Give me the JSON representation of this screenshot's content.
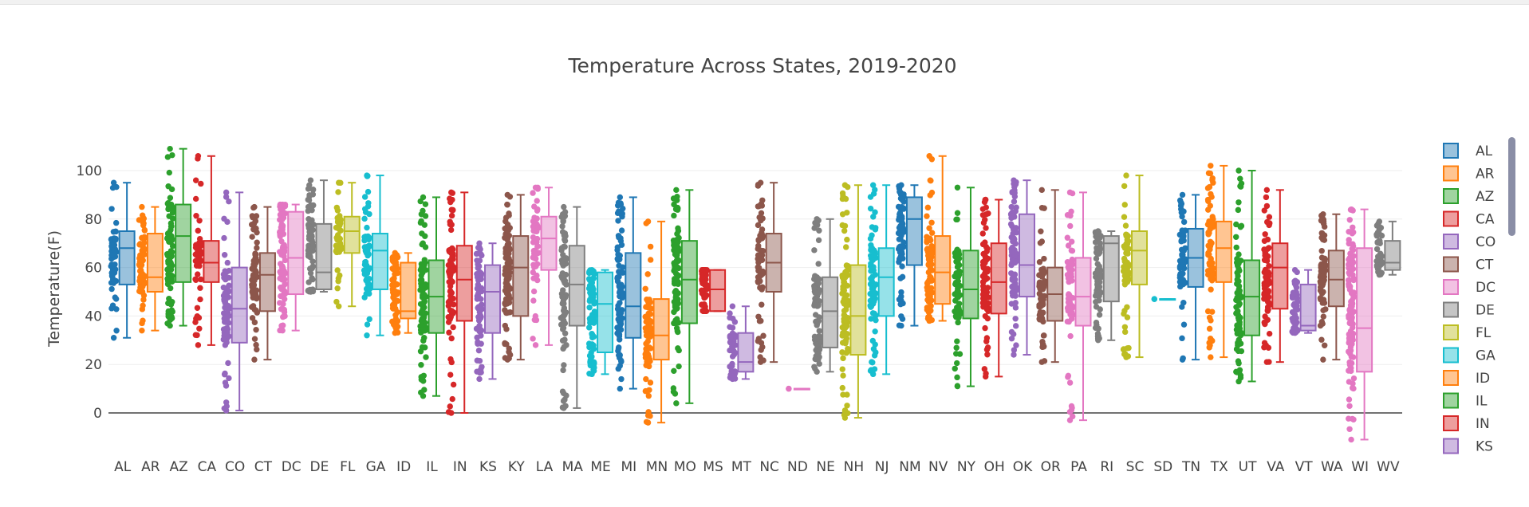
{
  "chart_data": {
    "type": "box",
    "title": "Temperature Across States, 2019-2020",
    "xlabel": "",
    "ylabel": "Temperature(F)",
    "ylim": [
      -9,
      114
    ],
    "yticks": [
      0,
      20,
      40,
      60,
      80,
      100
    ],
    "grid": true,
    "legend": {
      "placement": "right",
      "entries": [
        "AL",
        "AR",
        "AZ",
        "CA",
        "CO",
        "CT",
        "DC",
        "DE",
        "FL",
        "GA",
        "ID",
        "IL",
        "IN",
        "KS"
      ]
    },
    "series": [
      {
        "name": "AL",
        "color": "#1f77b4",
        "min": 31,
        "q1": 53,
        "median": 68,
        "q3": 75,
        "max": 95
      },
      {
        "name": "AR",
        "color": "#ff7f0e",
        "min": 34,
        "q1": 50,
        "median": 56,
        "q3": 74,
        "max": 85
      },
      {
        "name": "AZ",
        "color": "#2ca02c",
        "min": 36,
        "q1": 54,
        "median": 73,
        "q3": 86,
        "max": 109
      },
      {
        "name": "CA",
        "color": "#d62728",
        "min": 28,
        "q1": 54,
        "median": 62,
        "q3": 71,
        "max": 106
      },
      {
        "name": "CO",
        "color": "#9467bd",
        "min": 1,
        "q1": 29,
        "median": 43,
        "q3": 60,
        "max": 91
      },
      {
        "name": "CT",
        "color": "#8c564b",
        "min": 22,
        "q1": 42,
        "median": 57,
        "q3": 66,
        "max": 85
      },
      {
        "name": "DC",
        "color": "#e377c2",
        "min": 34,
        "q1": 49,
        "median": 64,
        "q3": 83,
        "max": 86
      },
      {
        "name": "DE",
        "color": "#7f7f7f",
        "min": 50,
        "q1": 51,
        "median": 58,
        "q3": 78,
        "max": 96
      },
      {
        "name": "FL",
        "color": "#bcbd22",
        "min": 44,
        "q1": 66,
        "median": 75,
        "q3": 81,
        "max": 95
      },
      {
        "name": "GA",
        "color": "#17becf",
        "min": 32,
        "q1": 51,
        "median": 67,
        "q3": 74,
        "max": 98
      },
      {
        "name": "ID",
        "color": "#ff7f0e",
        "min": 33,
        "q1": 39,
        "median": 42,
        "q3": 62,
        "max": 66
      },
      {
        "name": "IL",
        "color": "#2ca02c",
        "min": 7,
        "q1": 33,
        "median": 48,
        "q3": 63,
        "max": 89
      },
      {
        "name": "IN",
        "color": "#d62728",
        "min": 0,
        "q1": 38,
        "median": 55,
        "q3": 69,
        "max": 91
      },
      {
        "name": "KS",
        "color": "#9467bd",
        "min": 14,
        "q1": 33,
        "median": 50,
        "q3": 61,
        "max": 70
      },
      {
        "name": "KY",
        "color": "#8c564b",
        "min": 22,
        "q1": 40,
        "median": 60,
        "q3": 73,
        "max": 90
      },
      {
        "name": "LA",
        "color": "#e377c2",
        "min": 28,
        "q1": 59,
        "median": 72,
        "q3": 81,
        "max": 93
      },
      {
        "name": "MA",
        "color": "#7f7f7f",
        "min": 2,
        "q1": 36,
        "median": 53,
        "q3": 69,
        "max": 85
      },
      {
        "name": "ME",
        "color": "#17becf",
        "min": 16,
        "q1": 25,
        "median": 45,
        "q3": 58,
        "max": 59
      },
      {
        "name": "MI",
        "color": "#1f77b4",
        "min": 10,
        "q1": 31,
        "median": 44,
        "q3": 66,
        "max": 89
      },
      {
        "name": "MN",
        "color": "#ff7f0e",
        "min": -4,
        "q1": 22,
        "median": 32,
        "q3": 47,
        "max": 79
      },
      {
        "name": "MO",
        "color": "#2ca02c",
        "min": 4,
        "q1": 37,
        "median": 55,
        "q3": 71,
        "max": 92
      },
      {
        "name": "MS",
        "color": "#d62728",
        "min": 42,
        "q1": 42,
        "median": 51,
        "q3": 59,
        "max": 59
      },
      {
        "name": "MT",
        "color": "#9467bd",
        "min": 14,
        "q1": 17,
        "median": 21,
        "q3": 33,
        "max": 44
      },
      {
        "name": "NC",
        "color": "#8c564b",
        "min": 21,
        "q1": 50,
        "median": 62,
        "q3": 74,
        "max": 95
      },
      {
        "name": "ND",
        "color": "#e377c2",
        "min": 10,
        "q1": 10,
        "median": 10,
        "q3": 10,
        "max": 10
      },
      {
        "name": "NE",
        "color": "#7f7f7f",
        "min": 17,
        "q1": 27,
        "median": 42,
        "q3": 56,
        "max": 80
      },
      {
        "name": "NH",
        "color": "#bcbd22",
        "min": -2,
        "q1": 24,
        "median": 40,
        "q3": 61,
        "max": 94
      },
      {
        "name": "NJ",
        "color": "#17becf",
        "min": 16,
        "q1": 40,
        "median": 56,
        "q3": 68,
        "max": 94
      },
      {
        "name": "NM",
        "color": "#1f77b4",
        "min": 36,
        "q1": 61,
        "median": 80,
        "q3": 89,
        "max": 94
      },
      {
        "name": "NV",
        "color": "#ff7f0e",
        "min": 38,
        "q1": 45,
        "median": 58,
        "q3": 73,
        "max": 106
      },
      {
        "name": "NY",
        "color": "#2ca02c",
        "min": 11,
        "q1": 39,
        "median": 51,
        "q3": 67,
        "max": 93
      },
      {
        "name": "OH",
        "color": "#d62728",
        "min": 15,
        "q1": 41,
        "median": 54,
        "q3": 70,
        "max": 88
      },
      {
        "name": "OK",
        "color": "#9467bd",
        "min": 24,
        "q1": 48,
        "median": 61,
        "q3": 82,
        "max": 96
      },
      {
        "name": "OR",
        "color": "#8c564b",
        "min": 21,
        "q1": 38,
        "median": 49,
        "q3": 60,
        "max": 92
      },
      {
        "name": "PA",
        "color": "#e377c2",
        "min": -3,
        "q1": 36,
        "median": 48,
        "q3": 64,
        "max": 91
      },
      {
        "name": "RI",
        "color": "#7f7f7f",
        "min": 30,
        "q1": 46,
        "median": 70,
        "q3": 73,
        "max": 75
      },
      {
        "name": "SC",
        "color": "#bcbd22",
        "min": 23,
        "q1": 53,
        "median": 67,
        "q3": 75,
        "max": 98
      },
      {
        "name": "SD",
        "color": "#17becf",
        "min": 47,
        "q1": 47,
        "median": 47,
        "q3": 47,
        "max": 47
      },
      {
        "name": "TN",
        "color": "#1f77b4",
        "min": 22,
        "q1": 52,
        "median": 64,
        "q3": 76,
        "max": 90
      },
      {
        "name": "TX",
        "color": "#ff7f0e",
        "min": 23,
        "q1": 54,
        "median": 68,
        "q3": 79,
        "max": 102
      },
      {
        "name": "UT",
        "color": "#2ca02c",
        "min": 13,
        "q1": 32,
        "median": 48,
        "q3": 63,
        "max": 100
      },
      {
        "name": "VA",
        "color": "#d62728",
        "min": 21,
        "q1": 43,
        "median": 60,
        "q3": 70,
        "max": 92
      },
      {
        "name": "VT",
        "color": "#9467bd",
        "min": 33,
        "q1": 34,
        "median": 36,
        "q3": 53,
        "max": 59
      },
      {
        "name": "WA",
        "color": "#8c564b",
        "min": 22,
        "q1": 44,
        "median": 55,
        "q3": 67,
        "max": 82
      },
      {
        "name": "WI",
        "color": "#e377c2",
        "min": -11,
        "q1": 17,
        "median": 35,
        "q3": 68,
        "max": 84
      },
      {
        "name": "WV",
        "color": "#7f7f7f",
        "min": 57,
        "q1": 59,
        "median": 62,
        "q3": 71,
        "max": 79
      }
    ]
  }
}
